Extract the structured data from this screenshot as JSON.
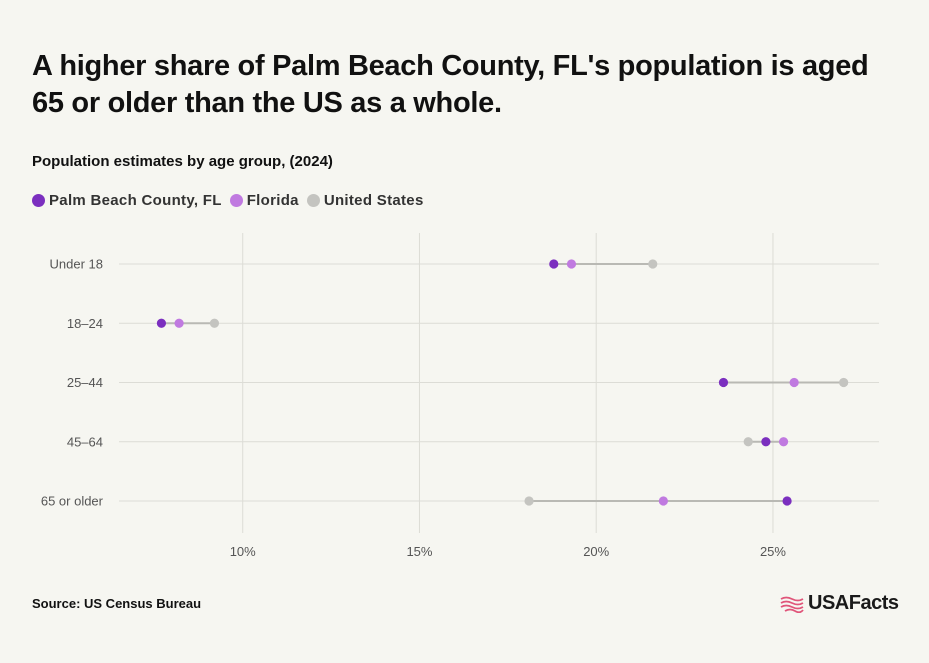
{
  "header": {
    "title": "A higher share of Palm Beach County, FL's population is aged 65 or older than the US as a whole.",
    "subtitle": "Population estimates by age group, (2024)"
  },
  "legend": [
    {
      "name": "Palm Beach County, FL",
      "color": "#7b2fbf"
    },
    {
      "name": "Florida",
      "color": "#c07ae0"
    },
    {
      "name": "United States",
      "color": "#c4c4c0"
    }
  ],
  "footer": {
    "source": "Source: US Census Bureau",
    "brand": "USAFacts"
  },
  "chart_data": {
    "type": "scatter",
    "categories": [
      "Under 18",
      "18–24",
      "25–44",
      "45–64",
      "65 or older"
    ],
    "x_ticks": [
      10,
      15,
      20,
      25
    ],
    "x_tick_labels": [
      "10%",
      "15%",
      "20%",
      "25%"
    ],
    "xlim": [
      6.5,
      28
    ],
    "grid": true,
    "legend_position": "top-left",
    "series": [
      {
        "name": "Palm Beach County, FL",
        "color": "#7b2fbf",
        "values": [
          18.8,
          7.7,
          23.6,
          24.8,
          25.4
        ]
      },
      {
        "name": "Florida",
        "color": "#c07ae0",
        "values": [
          19.3,
          8.2,
          25.6,
          25.3,
          21.9
        ]
      },
      {
        "name": "United States",
        "color": "#c4c4c0",
        "values": [
          21.6,
          9.2,
          27.0,
          24.3,
          18.1
        ]
      }
    ]
  }
}
